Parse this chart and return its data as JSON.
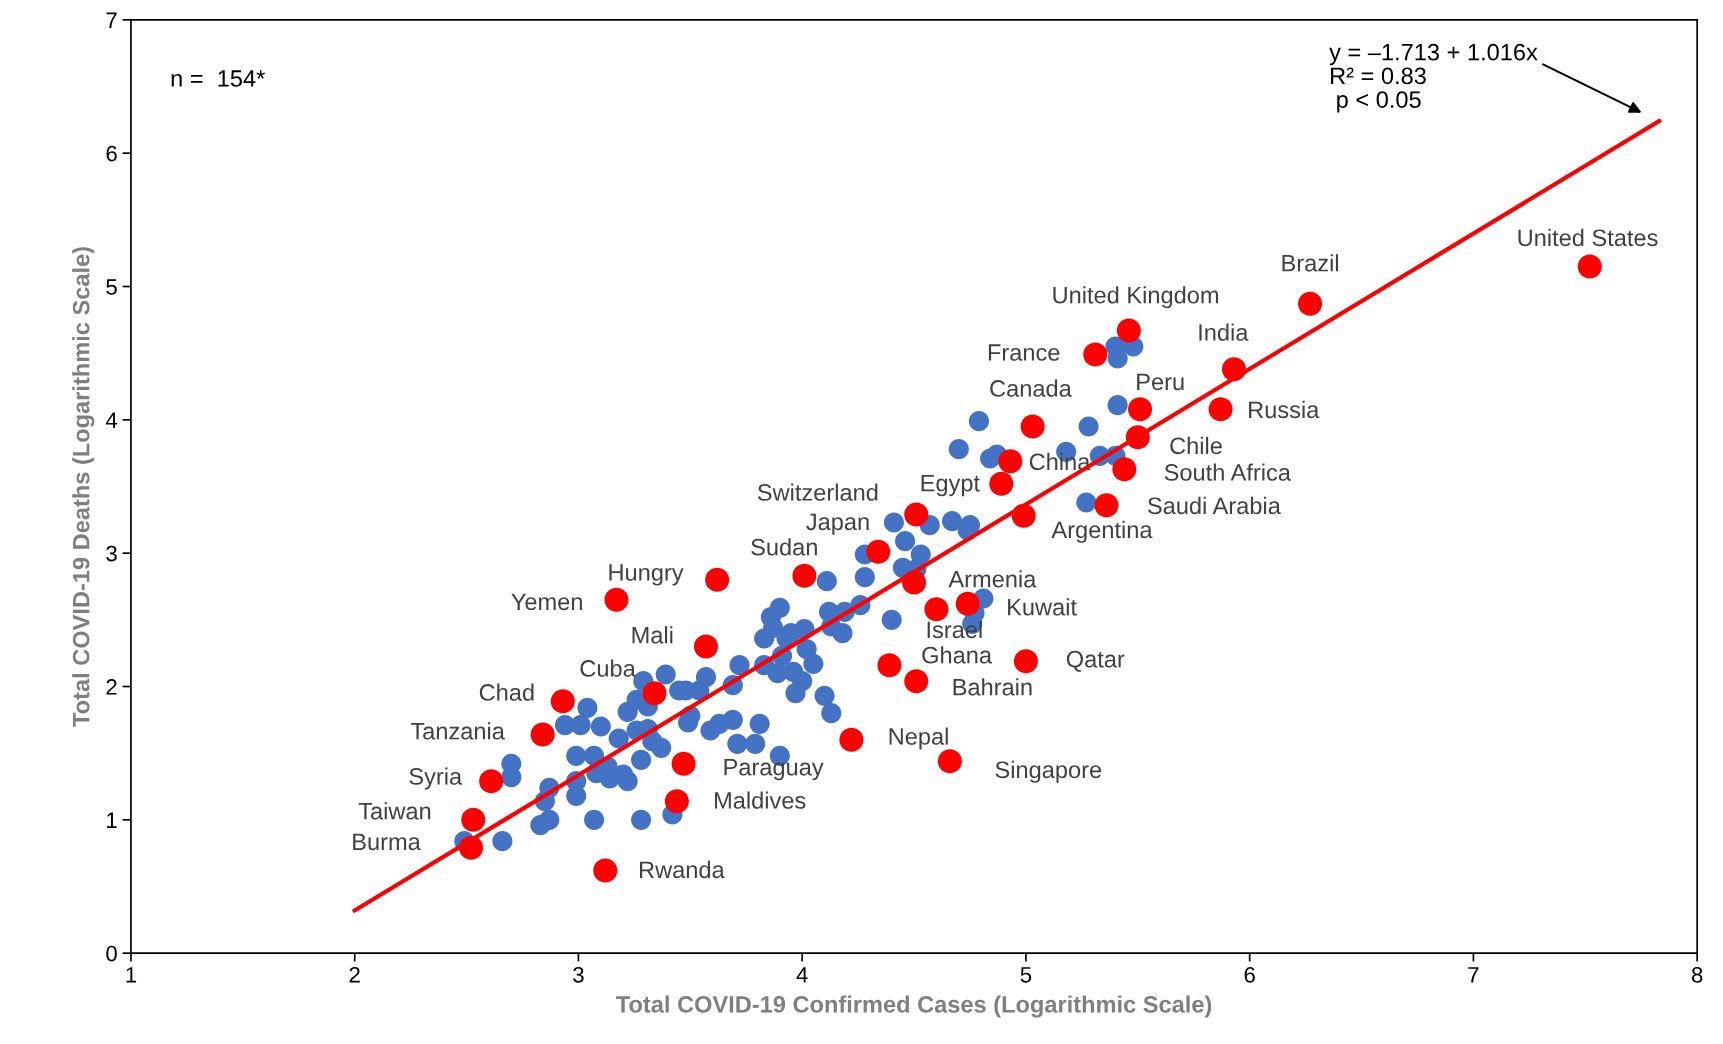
{
  "chart_data": {
    "type": "scatter",
    "xlabel": "Total COVID-19 Confirmed Cases (Logarithmic Scale)",
    "ylabel": "Total COVID-19 Deaths (Logarithmic Scale)",
    "xlim": [
      1,
      8
    ],
    "xticks": [
      1,
      2,
      3,
      4,
      5,
      6,
      7,
      8
    ],
    "ylim": [
      0,
      7
    ],
    "yticks": [
      0,
      1,
      2,
      3,
      4,
      5,
      6,
      7
    ],
    "grid": false,
    "marker": "circle",
    "series": [
      {
        "color": "#4472c4",
        "x": [
          2.49,
          2.66,
          2.7,
          2.7,
          2.83,
          2.87,
          2.85,
          2.87,
          2.99,
          2.99,
          2.99,
          3.07,
          3.07,
          2.94,
          3.01,
          3.04,
          3.1,
          3.08,
          3.13,
          3.14,
          3.18,
          3.2,
          3.22,
          3.22,
          3.26,
          3.28,
          3.26,
          3.28,
          3.29,
          3.31,
          3.31,
          3.33,
          3.37,
          3.39,
          3.42,
          3.45,
          3.48,
          3.49,
          3.5,
          3.57,
          3.54,
          3.59,
          3.63,
          3.69,
          3.69,
          3.72,
          3.71,
          3.79,
          3.81,
          3.83,
          3.83,
          3.86,
          3.9,
          3.87,
          3.9,
          3.89,
          3.91,
          3.93,
          3.96,
          3.97,
          4.0,
          4.01,
          3.95,
          4.02,
          4.05,
          4.1,
          4.13,
          4.12,
          4.11,
          4.19,
          4.18,
          4.13,
          4.26,
          4.28,
          4.28,
          4.4,
          4.41,
          4.45,
          4.46,
          4.53,
          4.51,
          4.57,
          4.67,
          4.74,
          4.75,
          4.7,
          4.79,
          4.84,
          4.87,
          4.81,
          4.77,
          4.76,
          5.18,
          5.28,
          5.33,
          5.4,
          5.41,
          5.48,
          5.41,
          5.27,
          5.4
        ],
        "values": [
          0.84,
          0.84,
          1.42,
          1.32,
          0.96,
          1.0,
          1.14,
          1.24,
          1.48,
          1.18,
          1.29,
          1.0,
          1.48,
          1.71,
          1.71,
          1.84,
          1.7,
          1.35,
          1.4,
          1.31,
          1.61,
          1.34,
          1.29,
          1.81,
          1.67,
          1.45,
          1.9,
          1.0,
          2.04,
          1.85,
          1.68,
          1.59,
          1.54,
          2.09,
          1.04,
          1.97,
          1.97,
          1.73,
          1.78,
          2.07,
          1.97,
          1.67,
          1.72,
          1.75,
          2.01,
          2.16,
          1.57,
          1.57,
          1.72,
          2.16,
          2.36,
          2.52,
          2.59,
          2.44,
          1.48,
          2.1,
          2.23,
          2.36,
          2.11,
          1.95,
          2.04,
          2.43,
          2.4,
          2.28,
          2.17,
          1.93,
          1.8,
          2.56,
          2.79,
          2.56,
          2.4,
          2.45,
          2.61,
          2.82,
          2.99,
          2.5,
          3.23,
          2.89,
          3.09,
          2.99,
          2.88,
          3.21,
          3.24,
          3.17,
          3.21,
          3.78,
          3.99,
          3.71,
          3.74,
          2.66,
          2.55,
          2.47,
          3.76,
          3.95,
          3.73,
          4.55,
          4.46,
          4.55,
          4.11,
          3.38,
          3.73
        ]
      },
      {
        "color": "#ff0000",
        "x": [
          7.52,
          6.27,
          5.46,
          5.93,
          5.31,
          5.03,
          5.51,
          5.87,
          5.5,
          5.44,
          4.93,
          4.89,
          5.36,
          4.99,
          4.51,
          4.34,
          4.01,
          3.62,
          3.17,
          4.5,
          4.6,
          4.74,
          3.57,
          4.39,
          5.0,
          4.51,
          3.34,
          2.93,
          2.84,
          4.22,
          3.47,
          4.66,
          2.61,
          3.44,
          2.53,
          2.52,
          3.12
        ],
        "values": [
          5.15,
          4.87,
          4.67,
          4.38,
          4.49,
          3.95,
          4.08,
          4.08,
          3.87,
          3.63,
          3.69,
          3.52,
          3.36,
          3.28,
          3.29,
          3.01,
          2.83,
          2.8,
          2.65,
          2.78,
          2.58,
          2.62,
          2.3,
          2.16,
          2.19,
          2.04,
          1.95,
          1.89,
          1.64,
          1.6,
          1.42,
          1.44,
          1.29,
          1.14,
          1.0,
          0.79,
          0.62
        ]
      },
      {
        "type": "line",
        "color": "#ff0000",
        "marker": "none",
        "line_style": "solid",
        "x": [
          2,
          7.83
        ],
        "values": [
          0.32,
          6.24
        ]
      }
    ],
    "annotations": [
      "n =  154*",
      "y = –1.713 + 1.016x\nR² = 0.83\n p < 0.05",
      {
        "text": "United States",
        "x": 7.52,
        "y": 5.15
      },
      {
        "text": "Brazil",
        "x": 6.27,
        "y": 4.87
      },
      {
        "text": "United Kingdom",
        "x": 5.46,
        "y": 4.67
      },
      {
        "text": "India",
        "x": 5.93,
        "y": 4.38
      },
      {
        "text": "France",
        "x": 5.31,
        "y": 4.49
      },
      {
        "text": "Canada",
        "x": 5.03,
        "y": 3.95
      },
      {
        "text": "Peru",
        "x": 5.51,
        "y": 4.08
      },
      {
        "text": "Russia",
        "x": 5.87,
        "y": 4.08
      },
      {
        "text": "Chile",
        "x": 5.5,
        "y": 3.87
      },
      {
        "text": "South Africa",
        "x": 5.44,
        "y": 3.63
      },
      {
        "text": "China",
        "x": 4.93,
        "y": 3.69
      },
      {
        "text": "Egypt",
        "x": 4.89,
        "y": 3.52
      },
      {
        "text": "Saudi Arabia",
        "x": 5.36,
        "y": 3.36
      },
      {
        "text": "Argentina",
        "x": 4.99,
        "y": 3.28
      },
      {
        "text": "Switzerland",
        "x": 4.51,
        "y": 3.29
      },
      {
        "text": "Japan",
        "x": 4.34,
        "y": 3.01
      },
      {
        "text": "Sudan",
        "x": 4.01,
        "y": 2.83
      },
      {
        "text": "Hungry",
        "x": 3.62,
        "y": 2.8
      },
      {
        "text": "Yemen",
        "x": 3.17,
        "y": 2.65
      },
      {
        "text": "Armenia",
        "x": 4.5,
        "y": 2.78
      },
      {
        "text": "Israel",
        "x": 4.6,
        "y": 2.58
      },
      {
        "text": "Kuwait",
        "x": 4.74,
        "y": 2.62
      },
      {
        "text": "Mali",
        "x": 3.57,
        "y": 2.3
      },
      {
        "text": "Ghana",
        "x": 4.39,
        "y": 2.16
      },
      {
        "text": "Qatar",
        "x": 5.0,
        "y": 2.19
      },
      {
        "text": "Bahrain",
        "x": 4.51,
        "y": 2.04
      },
      {
        "text": "Cuba",
        "x": 3.34,
        "y": 1.95
      },
      {
        "text": "Chad",
        "x": 2.93,
        "y": 1.89
      },
      {
        "text": "Tanzania",
        "x": 2.84,
        "y": 1.64
      },
      {
        "text": "Nepal",
        "x": 4.22,
        "y": 1.6
      },
      {
        "text": "Paraguay",
        "x": 3.47,
        "y": 1.42
      },
      {
        "text": "Singapore",
        "x": 4.66,
        "y": 1.44
      },
      {
        "text": "Syria",
        "x": 2.61,
        "y": 1.29
      },
      {
        "text": "Maldives",
        "x": 3.44,
        "y": 1.14
      },
      {
        "text": "Taiwan",
        "x": 2.53,
        "y": 1.0
      },
      {
        "text": "Burma",
        "x": 2.52,
        "y": 0.79
      },
      {
        "text": "Rwanda",
        "x": 3.12,
        "y": 0.62
      }
    ]
  }
}
